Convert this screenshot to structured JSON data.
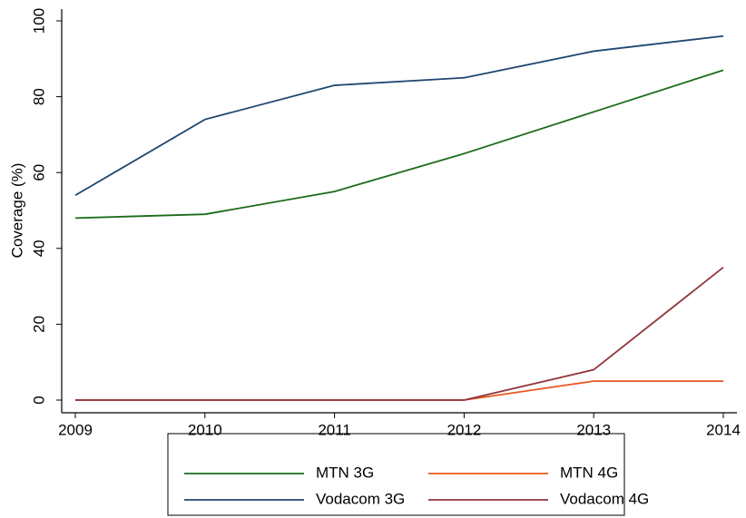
{
  "chart_data": {
    "type": "line",
    "y_label": "Coverage (%)",
    "x": [
      2009,
      2010,
      2011,
      2012,
      2013,
      2014
    ],
    "xlim": [
      2009,
      2014
    ],
    "xticks": [
      2009,
      2010,
      2011,
      2012,
      2013,
      2014
    ],
    "ylim": [
      0,
      100
    ],
    "yticks": [
      0,
      20,
      40,
      60,
      80,
      100
    ],
    "grid": false,
    "legend": "bottom",
    "series": [
      {
        "name": "MTN 3G",
        "color": "#1a6b1a",
        "values": [
          48,
          49,
          55,
          65,
          76,
          87
        ]
      },
      {
        "name": "MTN 4G",
        "color": "#e8561e",
        "values": [
          0,
          0,
          0,
          0,
          5,
          5
        ]
      },
      {
        "name": "Vodacom 3G",
        "color": "#1f4770",
        "values": [
          54,
          74,
          83,
          85,
          92,
          96
        ]
      },
      {
        "name": "Vodacom 4G",
        "color": "#90353b",
        "values": [
          0,
          0,
          0,
          0,
          8,
          35
        ]
      }
    ]
  }
}
